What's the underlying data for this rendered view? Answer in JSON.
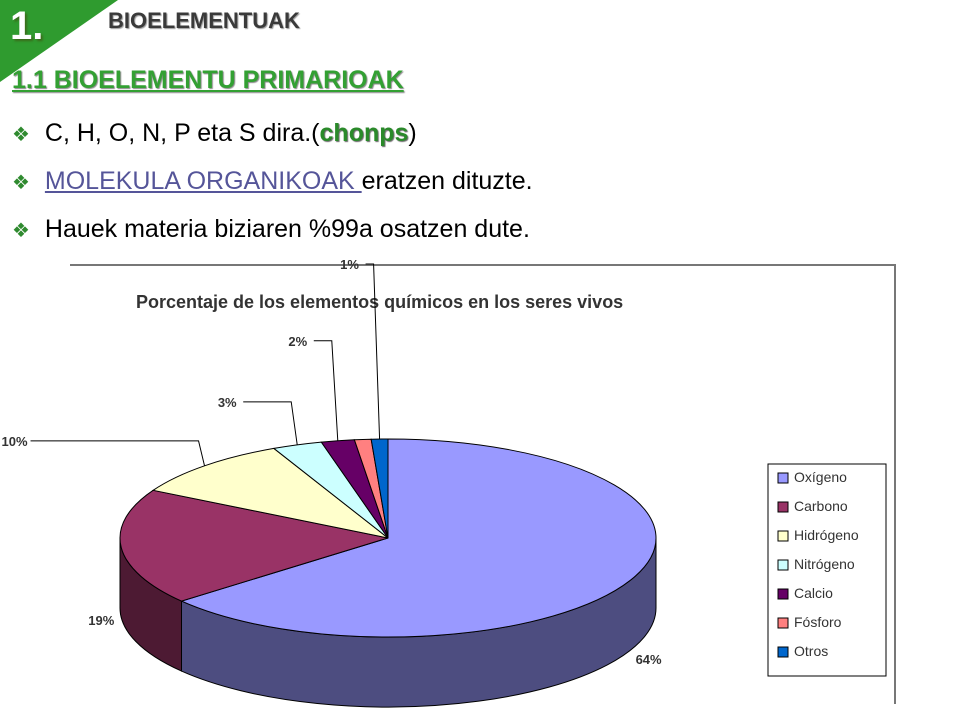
{
  "slide": {
    "number": "1.",
    "topic": "BIOELEMENTUAK",
    "subtitle": "1.1 BIOELEMENTU PRIMARIOAK",
    "bullet1": {
      "pre": "C, H, O, N, P eta S dira.(",
      "highlight": "chonps",
      "post": ")"
    },
    "bullet2": {
      "link": "MOLEKULA ORGANIKOAK ",
      "rest": "eratzen dituzte."
    },
    "bullet3": "Hauek materia biziaren %99a osatzen dute."
  },
  "colors": {
    "corner": "#2f9b2f",
    "accent": "#2a8a2a"
  },
  "chart_data": {
    "type": "pie",
    "title": "Porcentaje de los elementos químicos en los seres vivos",
    "series": [
      {
        "name": "Oxígeno",
        "value": 64,
        "label": "64%",
        "color": "#9999ff"
      },
      {
        "name": "Carbono",
        "value": 19,
        "label": "19%",
        "color": "#993366"
      },
      {
        "name": "Hidrógeno",
        "value": 10,
        "label": "10%",
        "color": "#ffffcc"
      },
      {
        "name": "Nitrógeno",
        "value": 3,
        "label": "3%",
        "color": "#ccffff"
      },
      {
        "name": "Calcio",
        "value": 2,
        "label": "2%",
        "color": "#660066"
      },
      {
        "name": "Fósforo",
        "value": 1,
        "label": "",
        "color": "#ff8080"
      },
      {
        "name": "Otros",
        "value": 1,
        "label": "1%",
        "color": "#0066cc"
      }
    ],
    "legend_position": "right",
    "three_d": true
  }
}
